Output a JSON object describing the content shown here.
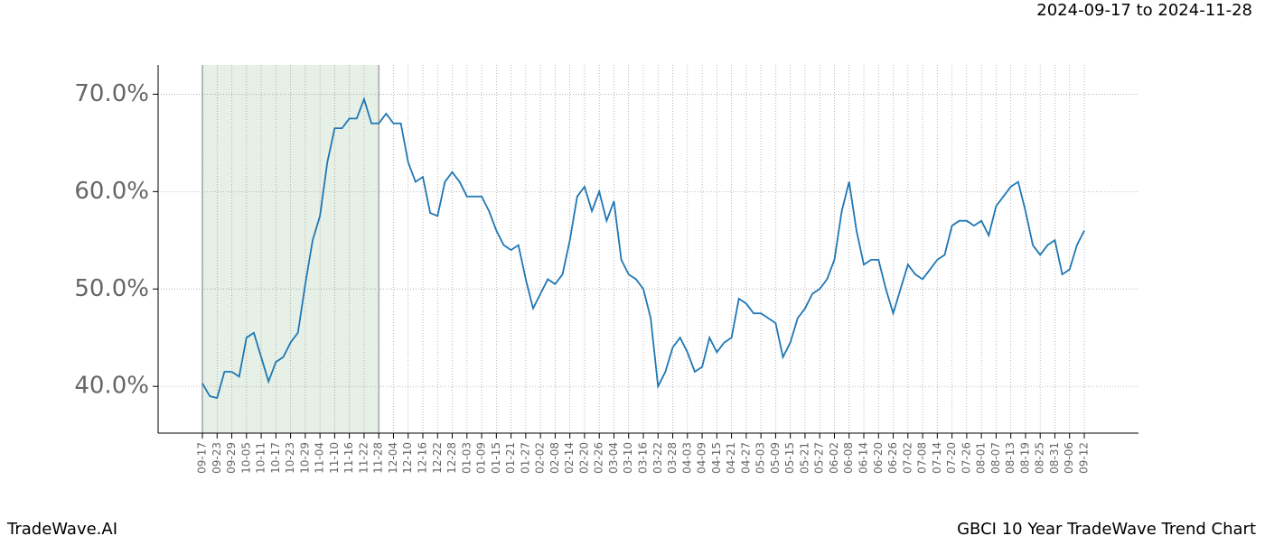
{
  "chart_data": {
    "type": "line",
    "date_range": "2024-09-17 to 2024-11-28",
    "brand": "TradeWave.AI",
    "title": "GBCI 10 Year TradeWave Trend Chart",
    "highlight": [
      "09-17",
      "11-28"
    ],
    "highlight_color": "#e6f0e6",
    "grid": true,
    "categories": [
      "09-17",
      null,
      "09-23",
      null,
      "09-29",
      null,
      "10-05",
      null,
      "10-11",
      null,
      "10-17",
      null,
      "10-23",
      null,
      "10-29",
      null,
      "11-04",
      null,
      "11-10",
      null,
      "11-16",
      null,
      "11-22",
      null,
      "11-28",
      null,
      "12-04",
      null,
      "12-10",
      null,
      "12-16",
      null,
      "12-22",
      null,
      "12-28",
      null,
      "01-03",
      null,
      "01-09",
      null,
      "01-15",
      null,
      "01-21",
      null,
      "01-27",
      null,
      "02-02",
      null,
      "02-08",
      null,
      "02-14",
      null,
      "02-20",
      null,
      "02-26",
      null,
      "03-04",
      null,
      "03-10",
      null,
      "03-16",
      null,
      "03-22",
      null,
      "03-28",
      null,
      "04-03",
      null,
      "04-09",
      null,
      "04-15",
      null,
      "04-21",
      null,
      "04-27",
      null,
      "05-03",
      null,
      "05-09",
      null,
      "05-15",
      null,
      "05-21",
      null,
      "05-27",
      null,
      "06-02",
      null,
      "06-08",
      null,
      "06-14",
      null,
      "06-20",
      null,
      "06-26",
      null,
      "07-02",
      null,
      "07-08",
      null,
      "07-14",
      null,
      "07-20",
      null,
      "07-26",
      null,
      "08-01",
      null,
      "08-07",
      null,
      "08-13",
      null,
      "08-19",
      null,
      "08-25",
      null,
      "08-31",
      null,
      "09-06",
      null,
      "09-12"
    ],
    "series": [
      {
        "name": "GBCI",
        "color": "#1f77b4",
        "values": [
          40.3,
          39.0,
          38.8,
          41.5,
          41.5,
          41.0,
          45.0,
          45.5,
          43.0,
          40.5,
          42.5,
          43.0,
          44.5,
          45.5,
          50.5,
          55.0,
          57.5,
          63.0,
          66.5,
          66.5,
          67.5,
          67.5,
          69.5,
          67.0,
          67.0,
          68.0,
          67.0,
          67.0,
          63.0,
          61.0,
          61.5,
          57.8,
          57.5,
          61.0,
          62.0,
          61.0,
          59.5,
          59.5,
          59.5,
          58.0,
          56.0,
          54.5,
          54.0,
          54.5,
          51.0,
          48.0,
          49.5,
          51.0,
          50.5,
          51.5,
          55.0,
          59.5,
          60.5,
          58.0,
          60.0,
          57.0,
          59.0,
          53.0,
          51.5,
          51.0,
          50.0,
          47.0,
          40.0,
          41.5,
          44.0,
          45.0,
          43.5,
          41.5,
          42.0,
          45.0,
          43.5,
          44.5,
          45.0,
          49.0,
          48.5,
          47.5,
          47.5,
          47.0,
          46.5,
          43.0,
          44.5,
          47.0,
          48.0,
          49.5,
          50.0,
          51.0,
          53.0,
          58.0,
          61.0,
          56.0,
          52.5,
          53.0,
          53.0,
          50.0,
          47.5,
          50.0,
          52.5,
          51.5,
          51.0,
          52.0,
          53.0,
          53.5,
          56.5,
          57.0,
          57.0,
          56.5,
          57.0,
          55.5,
          58.5,
          59.5,
          60.5,
          61.0,
          58.0,
          54.5,
          53.5,
          54.5,
          55.0,
          51.5,
          52.0,
          54.5,
          56.0
        ]
      }
    ],
    "ylim": [
      35.2,
      73.0
    ],
    "yticks": [
      {
        "value": 40,
        "label": "40.0%"
      },
      {
        "value": 50,
        "label": "50.0%"
      },
      {
        "value": 60,
        "label": "60.0%"
      },
      {
        "value": 70,
        "label": "70.0%"
      }
    ]
  }
}
